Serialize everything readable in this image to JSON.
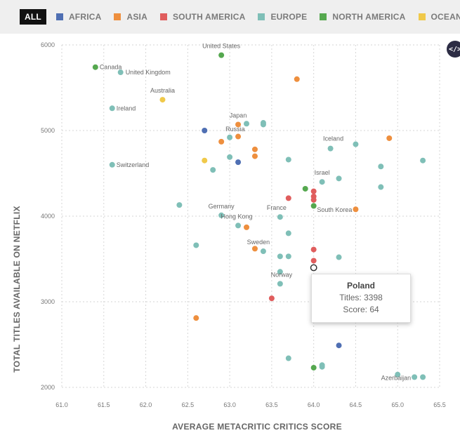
{
  "legend": {
    "all_label": "ALL",
    "items": [
      {
        "label": "AFRICA",
        "color": "#4f6fb3"
      },
      {
        "label": "ASIA",
        "color": "#ee8f3e"
      },
      {
        "label": "SOUTH AMERICA",
        "color": "#e05d5d"
      },
      {
        "label": "EUROPE",
        "color": "#7fbfb7"
      },
      {
        "label": "NORTH AMERICA",
        "color": "#55a84f"
      },
      {
        "label": "OCEANIA",
        "color": "#f0c94a"
      }
    ]
  },
  "embed_icon": "code-icon",
  "tooltip": {
    "title": "Poland",
    "titles_line": "Titles: 3398",
    "score_line": "Score: 64"
  },
  "chart_data": {
    "type": "scatter",
    "xlabel": "AVERAGE METACRITIC CRITICS SCORE",
    "ylabel": "TOTAL TITLES AVAILABLE ON NETFLIX",
    "xlim": [
      61.0,
      65.5
    ],
    "ylim": [
      2000,
      6000
    ],
    "x_ticks": [
      "61.0",
      "61.5",
      "62.0",
      "62.5",
      "63.0",
      "63.5",
      "64.0",
      "64.5",
      "65.0",
      "65.5"
    ],
    "y_ticks": [
      "2000",
      "3000",
      "4000",
      "5000",
      "6000"
    ],
    "grid": true,
    "colors": {
      "AFRICA": "#4f6fb3",
      "ASIA": "#ee8f3e",
      "SOUTH AMERICA": "#e05d5d",
      "EUROPE": "#7fbfb7",
      "NORTH AMERICA": "#55a84f",
      "OCEANIA": "#f0c94a"
    },
    "points": [
      {
        "label": "United States",
        "region": "NORTH AMERICA",
        "x": 62.9,
        "y": 5880
      },
      {
        "label": "Canada",
        "region": "NORTH AMERICA",
        "x": 61.4,
        "y": 5740
      },
      {
        "label": "United Kingdom",
        "region": "EUROPE",
        "x": 61.7,
        "y": 5680
      },
      {
        "label": "Australia",
        "region": "OCEANIA",
        "x": 62.2,
        "y": 5360
      },
      {
        "label": "Ireland",
        "region": "EUROPE",
        "x": 61.6,
        "y": 5260
      },
      {
        "label": "Japan",
        "region": "ASIA",
        "x": 63.1,
        "y": 5070
      },
      {
        "label": "Russia",
        "region": "EUROPE",
        "x": 63.0,
        "y": 4920
      },
      {
        "label": "Iceland",
        "region": "EUROPE",
        "x": 64.2,
        "y": 4790
      },
      {
        "label": "Switzerland",
        "region": "EUROPE",
        "x": 61.6,
        "y": 4600
      },
      {
        "label": "Israel",
        "region": "EUROPE",
        "x": 64.1,
        "y": 4400
      },
      {
        "label": "Germany",
        "region": "EUROPE",
        "x": 62.9,
        "y": 4010
      },
      {
        "label": "France",
        "region": "EUROPE",
        "x": 63.6,
        "y": 3990
      },
      {
        "label": "South Korea",
        "region": "ASIA",
        "x": 64.5,
        "y": 4080
      },
      {
        "label": "Hong Kong",
        "region": "EUROPE",
        "x": 63.1,
        "y": 3890
      },
      {
        "label": "Sweden",
        "region": "EUROPE",
        "x": 63.4,
        "y": 3590
      },
      {
        "label": "Norway",
        "region": "EUROPE",
        "x": 63.6,
        "y": 3210
      },
      {
        "label": "Poland",
        "region": "EUROPE",
        "x": 64.0,
        "y": 3398
      },
      {
        "label": "Azerbaijan",
        "region": "EUROPE",
        "x": 65.2,
        "y": 2120
      },
      {
        "label": "",
        "region": "ASIA",
        "x": 63.8,
        "y": 5600
      },
      {
        "label": "",
        "region": "EUROPE",
        "x": 63.2,
        "y": 5080
      },
      {
        "label": "",
        "region": "EUROPE",
        "x": 63.4,
        "y": 5070
      },
      {
        "label": "",
        "region": "EUROPE",
        "x": 63.4,
        "y": 5090
      },
      {
        "label": "",
        "region": "AFRICA",
        "x": 62.7,
        "y": 5000
      },
      {
        "label": "",
        "region": "ASIA",
        "x": 63.1,
        "y": 4930
      },
      {
        "label": "",
        "region": "ASIA",
        "x": 62.9,
        "y": 4870
      },
      {
        "label": "",
        "region": "ASIA",
        "x": 63.3,
        "y": 4780
      },
      {
        "label": "",
        "region": "ASIA",
        "x": 63.3,
        "y": 4700
      },
      {
        "label": "",
        "region": "ASIA",
        "x": 64.9,
        "y": 4910
      },
      {
        "label": "",
        "region": "EUROPE",
        "x": 64.5,
        "y": 4840
      },
      {
        "label": "",
        "region": "EUROPE",
        "x": 63.0,
        "y": 4690
      },
      {
        "label": "",
        "region": "OCEANIA",
        "x": 62.7,
        "y": 4650
      },
      {
        "label": "",
        "region": "AFRICA",
        "x": 63.1,
        "y": 4630
      },
      {
        "label": "",
        "region": "EUROPE",
        "x": 63.7,
        "y": 4660
      },
      {
        "label": "",
        "region": "EUROPE",
        "x": 65.3,
        "y": 4650
      },
      {
        "label": "",
        "region": "EUROPE",
        "x": 64.8,
        "y": 4580
      },
      {
        "label": "",
        "region": "EUROPE",
        "x": 62.8,
        "y": 4540
      },
      {
        "label": "",
        "region": "EUROPE",
        "x": 64.3,
        "y": 4440
      },
      {
        "label": "",
        "region": "EUROPE",
        "x": 64.8,
        "y": 4340
      },
      {
        "label": "",
        "region": "NORTH AMERICA",
        "x": 63.9,
        "y": 4320
      },
      {
        "label": "",
        "region": "SOUTH AMERICA",
        "x": 64.0,
        "y": 4290
      },
      {
        "label": "",
        "region": "SOUTH AMERICA",
        "x": 64.0,
        "y": 4230
      },
      {
        "label": "",
        "region": "SOUTH AMERICA",
        "x": 63.7,
        "y": 4210
      },
      {
        "label": "",
        "region": "SOUTH AMERICA",
        "x": 64.0,
        "y": 4190
      },
      {
        "label": "",
        "region": "NORTH AMERICA",
        "x": 64.0,
        "y": 4120
      },
      {
        "label": "",
        "region": "EUROPE",
        "x": 62.4,
        "y": 4130
      },
      {
        "label": "",
        "region": "ASIA",
        "x": 63.2,
        "y": 3870
      },
      {
        "label": "",
        "region": "EUROPE",
        "x": 63.7,
        "y": 3800
      },
      {
        "label": "",
        "region": "EUROPE",
        "x": 62.6,
        "y": 3660
      },
      {
        "label": "",
        "region": "ASIA",
        "x": 63.3,
        "y": 3620
      },
      {
        "label": "",
        "region": "SOUTH AMERICA",
        "x": 64.0,
        "y": 3610
      },
      {
        "label": "",
        "region": "EUROPE",
        "x": 63.6,
        "y": 3530
      },
      {
        "label": "",
        "region": "EUROPE",
        "x": 63.7,
        "y": 3530
      },
      {
        "label": "",
        "region": "EUROPE",
        "x": 64.3,
        "y": 3520
      },
      {
        "label": "",
        "region": "SOUTH AMERICA",
        "x": 64.0,
        "y": 3480
      },
      {
        "label": "",
        "region": "EUROPE",
        "x": 63.6,
        "y": 3350
      },
      {
        "label": "",
        "region": "SOUTH AMERICA",
        "x": 63.5,
        "y": 3040
      },
      {
        "label": "",
        "region": "ASIA",
        "x": 62.6,
        "y": 2810
      },
      {
        "label": "",
        "region": "AFRICA",
        "x": 64.3,
        "y": 2490
      },
      {
        "label": "",
        "region": "EUROPE",
        "x": 63.7,
        "y": 2340
      },
      {
        "label": "",
        "region": "NORTH AMERICA",
        "x": 64.0,
        "y": 2230
      },
      {
        "label": "",
        "region": "EUROPE",
        "x": 64.1,
        "y": 2240
      },
      {
        "label": "",
        "region": "EUROPE",
        "x": 64.1,
        "y": 2260
      },
      {
        "label": "",
        "region": "EUROPE",
        "x": 65.0,
        "y": 2150
      },
      {
        "label": "",
        "region": "EUROPE",
        "x": 65.3,
        "y": 2120
      }
    ],
    "highlight": "Poland"
  }
}
